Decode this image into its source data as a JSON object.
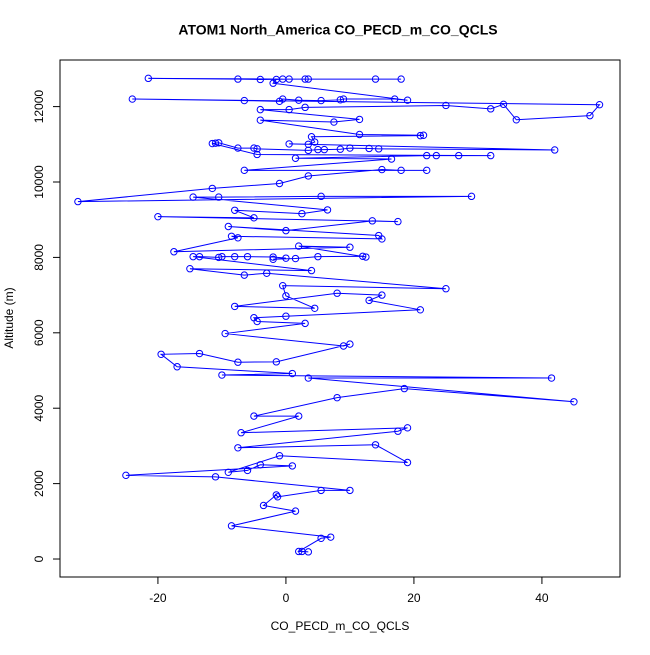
{
  "chart_data": {
    "type": "line",
    "title": "ATOM1 North_America CO_PECD_m_CO_QCLS",
    "x_label": "CO_PECD_m_CO_QCLS",
    "y_label": "Altitude (m)",
    "xlim": [
      -35.3,
      52.2
    ],
    "ylim": [
      -477,
      13236
    ],
    "xticks": [
      -20,
      0,
      20,
      40
    ],
    "yticks": [
      0,
      2000,
      4000,
      6000,
      8000,
      10000,
      12000
    ],
    "x": [
      2.5,
      3.5,
      2,
      5.5,
      7,
      -8.5,
      1.5,
      -3.5,
      -1.5,
      -1.3,
      5.5,
      10,
      -11,
      -25,
      1,
      -4,
      -6,
      -9,
      -1,
      19,
      14,
      -7.5,
      17.5,
      19,
      -7,
      2,
      -5,
      8,
      18.5,
      45,
      3.5,
      41.5,
      -10,
      1,
      -17,
      -19.5,
      -13.5,
      -7.5,
      -1.5,
      10,
      9,
      -9.5,
      3,
      -4.5,
      -5,
      0,
      21,
      13,
      15,
      8,
      -8,
      4.5,
      0,
      -0.5,
      25,
      -3,
      -6.5,
      -15,
      4,
      -14.5,
      -13.5,
      -10.5,
      -10,
      -8,
      -6,
      -2,
      0,
      -2,
      1.5,
      5,
      12,
      12.5,
      2,
      10,
      -17.5,
      -7.5,
      -8.5,
      15,
      14.5,
      -9,
      0,
      13.5,
      17.5,
      -20,
      -5,
      -8,
      2.5,
      6.5,
      -14.5,
      -10.5,
      5.5,
      29,
      -32.5,
      -11.5,
      -1,
      3.5,
      15,
      18,
      22,
      -6.5,
      16.5,
      1.5,
      22,
      23.5,
      27,
      32,
      -4.5,
      -11.5,
      -11,
      -10.5,
      -7.5,
      -5,
      -4.5,
      3.5,
      5,
      6,
      8.5,
      10,
      13,
      14.5,
      42,
      0.5,
      3.5,
      4.5,
      4,
      21,
      21.5,
      11.5,
      -4,
      7.5,
      11.5,
      -4,
      0.5,
      3,
      25,
      32,
      34,
      36,
      47.5,
      49,
      -24,
      -6.5,
      -1,
      -0.5,
      2,
      5.5,
      8.5,
      9,
      17,
      19,
      -2,
      -1.5,
      -0.5,
      -21.5,
      -7.5,
      -4,
      0.5,
      3,
      3.5,
      14,
      18
    ],
    "series": [
      {
        "color": "#0000ff",
        "values": [
          200,
          190,
          200,
          550,
          580,
          880,
          1270,
          1420,
          1700,
          1650,
          1820,
          1820,
          2180,
          2220,
          2470,
          2500,
          2350,
          2300,
          2740,
          2560,
          3030,
          2950,
          3390,
          3480,
          3350,
          3790,
          3790,
          4280,
          4520,
          4170,
          4800,
          4800,
          4880,
          4920,
          5100,
          5430,
          5450,
          5220,
          5230,
          5700,
          5650,
          5980,
          6250,
          6300,
          6400,
          6440,
          6610,
          6860,
          7000,
          7050,
          6700,
          6650,
          6980,
          7250,
          7170,
          7580,
          7530,
          7700,
          7650,
          8020,
          8020,
          8000,
          8020,
          8020,
          8020,
          8010,
          7980,
          7950,
          7970,
          8020,
          8030,
          8010,
          8300,
          8270,
          8150,
          8520,
          8560,
          8490,
          8580,
          8820,
          8710,
          8970,
          8950,
          9080,
          9050,
          9250,
          9160,
          9260,
          9600,
          9600,
          9620,
          9620,
          9480,
          9830,
          9960,
          10160,
          10330,
          10310,
          10310,
          10310,
          10610,
          10630,
          10700,
          10700,
          10700,
          10700,
          10730,
          11020,
          11030,
          11040,
          10900,
          10900,
          10880,
          10840,
          10860,
          10860,
          10870,
          10900,
          10890,
          10880,
          10850,
          11010,
          11000,
          11060,
          11200,
          11230,
          11240,
          11260,
          11640,
          11590,
          11660,
          11920,
          11920,
          11980,
          12030,
          11940,
          12060,
          11650,
          11760,
          12050,
          12200,
          12160,
          12140,
          12200,
          12170,
          12160,
          12180,
          12200,
          12200,
          12170,
          12620,
          12720,
          12730,
          12750,
          12730,
          12720,
          12730,
          12730,
          12730,
          12730,
          12730
        ]
      }
    ]
  }
}
